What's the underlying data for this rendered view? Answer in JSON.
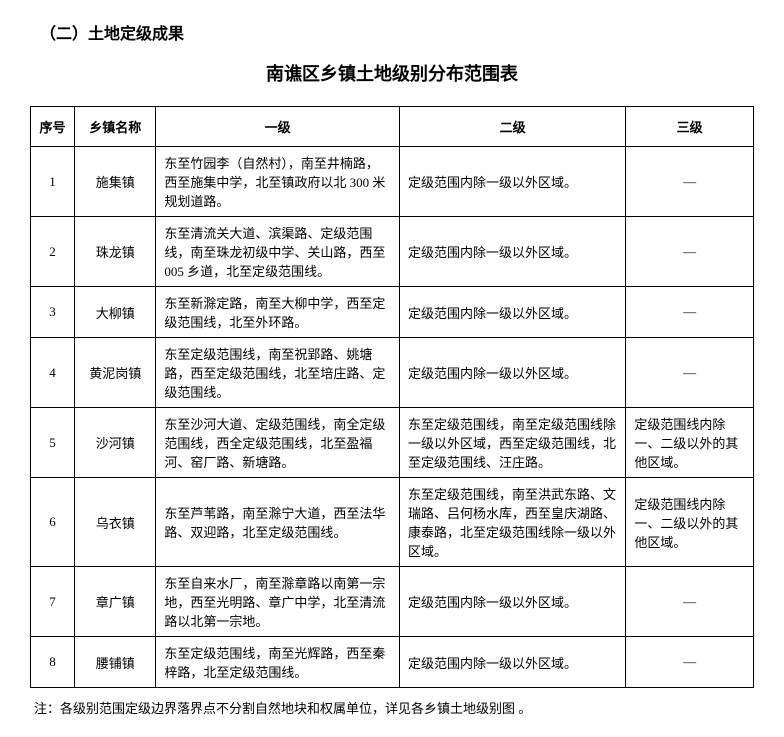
{
  "section_header": "（二）土地定级成果",
  "title": "南谯区乡镇土地级别分布范围表",
  "table": {
    "columns": [
      "序号",
      "乡镇名称",
      "一级",
      "二级",
      "三级"
    ],
    "rows": [
      {
        "seq": "1",
        "name": "施集镇",
        "level1": "东至竹园李（自然村），南至井楠路，西至施集中学，北至镇政府以北 300 米规划道路。",
        "level2": "定级范围内除一级以外区域。",
        "level3": "—"
      },
      {
        "seq": "2",
        "name": "珠龙镇",
        "level1": "东至清流关大道、滨渠路、定级范围线，南至珠龙初级中学、关山路，西至 005 乡道，北至定级范围线。",
        "level2": "定级范围内除一级以外区域。",
        "level3": "—"
      },
      {
        "seq": "3",
        "name": "大柳镇",
        "level1": "东至新滁定路，南至大柳中学，西至定级范围线，北至外环路。",
        "level2": "定级范围内除一级以外区域。",
        "level3": "—"
      },
      {
        "seq": "4",
        "name": "黄泥岗镇",
        "level1": "东至定级范围线，南至祝郢路、姚塘路，西至定级范围线，北至培庄路、定级范围线。",
        "level2": "定级范围内除一级以外区域。",
        "level3": "—"
      },
      {
        "seq": "5",
        "name": "沙河镇",
        "level1": "东至沙河大道、定级范围线，南全定级范围线，西全定级范围线，北至盈福河、窑厂路、新塘路。",
        "level2": "东至定级范围线，南至定级范围线除一级以外区域，西至定级范围线，北至定级范围线、汪庄路。",
        "level3": "定级范围线内除一、二级以外的其他区域。"
      },
      {
        "seq": "6",
        "name": "乌衣镇",
        "level1": "东至芦苇路，南至滁宁大道，西至法华路、双迎路，北至定级范围线。",
        "level2": "东至定级范围线，南至洪武东路、文瑞路、吕何杨水库，西至皇庆湖路、康泰路，北至定级范围线除一级以外区域。",
        "level3": "定级范围线内除一、二级以外的其他区域。"
      },
      {
        "seq": "7",
        "name": "章广镇",
        "level1": "东至自来水厂，南至滁章路以南第一宗地，西至光明路、章广中学，北至清流路以北第一宗地。",
        "level2": "定级范围内除一级以外区域。",
        "level3": "—"
      },
      {
        "seq": "8",
        "name": "腰铺镇",
        "level1": "东至定级范围线，南至光辉路，西至秦梓路，北至定级范围线。",
        "level2": "定级范围内除一级以外区域。",
        "level3": "—"
      }
    ]
  },
  "footnote": "注：各级别范围定级边界落界点不分割自然地块和权属单位，详见各乡镇土地级别图 。"
}
